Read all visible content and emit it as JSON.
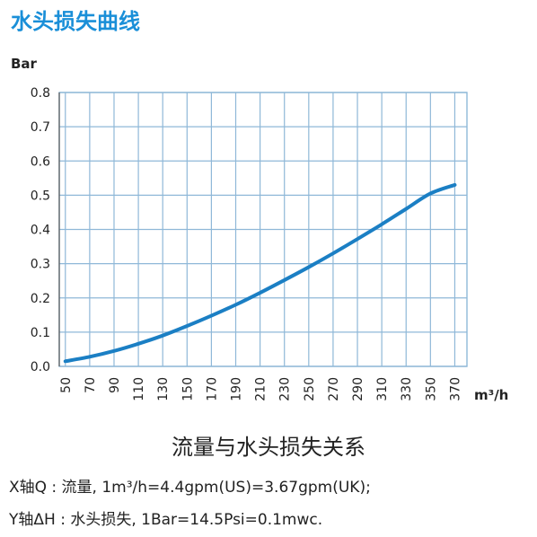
{
  "page_title": "水头损失曲线",
  "chart_data": {
    "type": "line",
    "title": "",
    "ylabel": "Bar",
    "xlabel": "m³/h",
    "x_ticks": [
      50,
      70,
      90,
      110,
      130,
      150,
      170,
      190,
      210,
      230,
      250,
      270,
      290,
      310,
      330,
      350,
      370
    ],
    "y_ticks": [
      "0.0",
      "0.1",
      "0.2",
      "0.3",
      "0.4",
      "0.5",
      "0.6",
      "0.7",
      "0.8"
    ],
    "xlim": [
      45,
      380
    ],
    "ylim": [
      0,
      0.8
    ],
    "grid": true,
    "series": [
      {
        "x": [
          50,
          70,
          90,
          110,
          130,
          150,
          170,
          190,
          210,
          230,
          250,
          270,
          290,
          310,
          330,
          350,
          370
        ],
        "y": [
          0.015,
          0.028,
          0.045,
          0.066,
          0.09,
          0.118,
          0.148,
          0.18,
          0.215,
          0.252,
          0.29,
          0.33,
          0.372,
          0.415,
          0.46,
          0.505,
          0.53
        ],
        "color": "#1b7fc4"
      }
    ],
    "caption": "流量与水头损失关系"
  },
  "notes": {
    "x_axis": "X轴Q : 流量, 1m³/h=4.4gpm(US)=3.67gpm(UK);",
    "y_axis": "Y轴ΔH : 水头损失, 1Bar=14.5Psi=0.1mwc."
  },
  "colors": {
    "title": "#1a8fd8",
    "grid": "#8fb8d8",
    "curve": "#1b7fc4",
    "frame": "#8fb8d8"
  }
}
